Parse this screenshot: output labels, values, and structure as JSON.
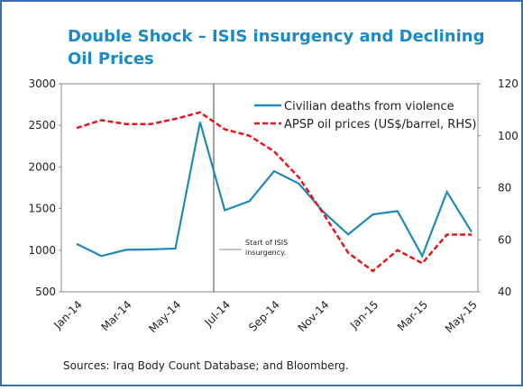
{
  "chart_data": {
    "type": "line",
    "title": [
      "Double Shock – ISIS insurgency and Declining",
      "Oil Prices"
    ],
    "categories": [
      "Jan-14",
      null,
      "Mar-14",
      null,
      "May-14",
      null,
      "Jul-14",
      null,
      "Sep-14",
      null,
      "Nov-14",
      null,
      "Jan-15",
      null,
      "Mar-15",
      null,
      "May-15"
    ],
    "series": [
      {
        "name": "Civilian deaths from violence",
        "color": "#1f8ab8",
        "dash": false,
        "axis": "y",
        "values": [
          1076,
          930,
          1005,
          1010,
          1020,
          2540,
          1480,
          1590,
          1950,
          1800,
          1460,
          1190,
          1430,
          1470,
          930,
          1700,
          1220
        ]
      },
      {
        "name": "APSP oil prices (US$/barrel, RHS)",
        "color": "#e8141c",
        "dash": true,
        "axis": "y2",
        "values": [
          103,
          106,
          104.5,
          104.5,
          106.5,
          109,
          102.5,
          100,
          94,
          84,
          70,
          55,
          48,
          56,
          51,
          62,
          62
        ]
      }
    ],
    "ylim": [
      500,
      3000
    ],
    "yticks": [
      500,
      1000,
      1500,
      2000,
      2500,
      3000
    ],
    "y2lim": [
      40,
      120
    ],
    "y2ticks": [
      40,
      60,
      80,
      100,
      120
    ],
    "annotation": [
      "Start of ISIS",
      "insurgency."
    ],
    "source": "Sources: Iraq Body Count Database; and Bloomberg.",
    "legend": "top-right",
    "grid": false
  }
}
